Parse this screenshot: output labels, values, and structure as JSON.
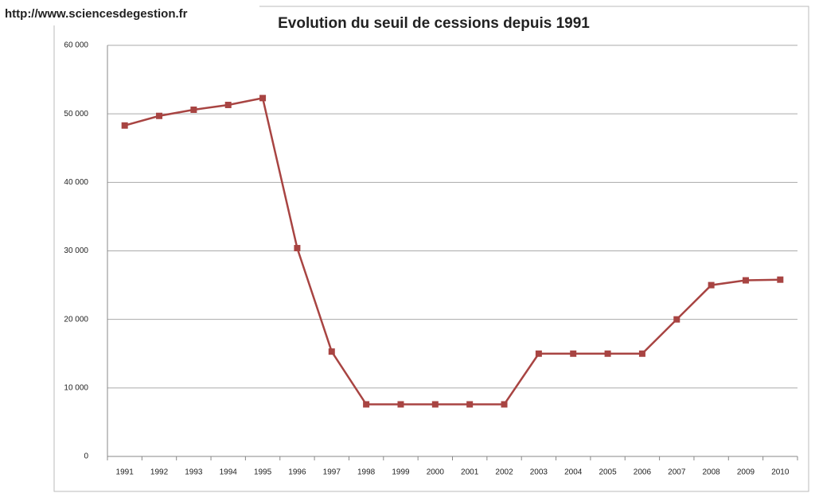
{
  "chart_data": {
    "type": "line",
    "source": "http://www.sciencesdegestion.fr",
    "title": "Evolution du seuil de cessions depuis 1991",
    "categories": [
      "1991",
      "1992",
      "1993",
      "1994",
      "1995",
      "1996",
      "1997",
      "1998",
      "1999",
      "2000",
      "2001",
      "2002",
      "2003",
      "2004",
      "2005",
      "2006",
      "2007",
      "2008",
      "2009",
      "2010"
    ],
    "values": [
      48300,
      49700,
      50600,
      51300,
      52300,
      30400,
      15300,
      7600,
      7600,
      7600,
      7600,
      7600,
      15000,
      15000,
      15000,
      15000,
      20000,
      25000,
      25700,
      25800
    ],
    "color": "#a84442",
    "ylim": [
      0,
      60000
    ],
    "yticks": [
      0,
      {
        "value": 10000,
        "label": "10 000"
      },
      {
        "value": 20000,
        "label": "20 000"
      },
      {
        "value": 30000,
        "label": "30 000"
      },
      {
        "value": 40000,
        "label": "40 000"
      },
      {
        "value": 50000,
        "label": "50 000"
      },
      {
        "value": 60000,
        "label": "60 000"
      }
    ],
    "grid": true
  }
}
